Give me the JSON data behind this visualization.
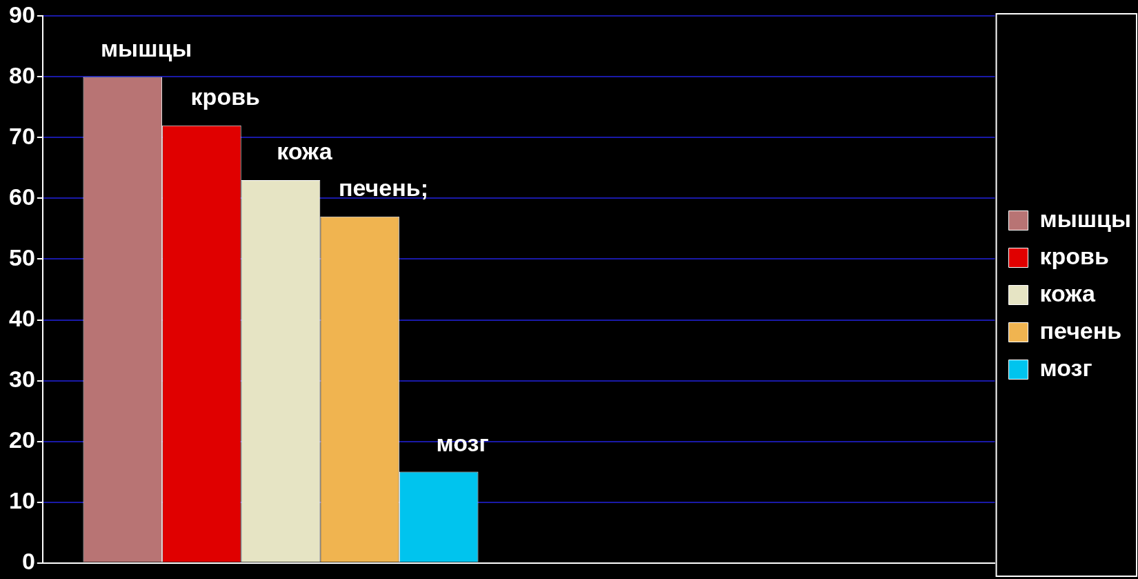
{
  "chart_data": {
    "type": "bar",
    "categories": [
      null,
      null
    ],
    "series": [
      {
        "name": "мышцы",
        "color": "#b87474",
        "values": [
          80,
          null
        ],
        "value_labels": [
          "мышцы",
          null
        ]
      },
      {
        "name": "кровь",
        "color": "#e00000",
        "values": [
          72,
          null
        ],
        "value_labels": [
          "кровь",
          null
        ]
      },
      {
        "name": "кожа",
        "color": "#e6e4c4",
        "values": [
          63,
          null
        ],
        "value_labels": [
          "кожа",
          null
        ]
      },
      {
        "name": "печень",
        "color": "#f0b450",
        "values": [
          57,
          null
        ],
        "value_labels": [
          "печень;",
          null
        ]
      },
      {
        "name": "мозг",
        "color": "#00c4ee",
        "values": [
          15,
          null
        ],
        "value_labels": [
          "мозг",
          null
        ]
      }
    ],
    "ylim": [
      0,
      90
    ],
    "yticks": [
      0,
      10,
      20,
      30,
      40,
      50,
      60,
      70,
      80,
      90
    ],
    "grid": "y",
    "legend": "right"
  }
}
